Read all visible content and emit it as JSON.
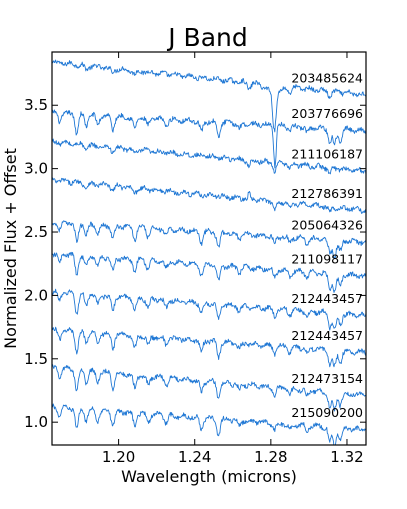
{
  "chart_data": {
    "type": "line",
    "title": "J Band",
    "xlabel": "Wavelength (microns)",
    "ylabel": "Normalized Flux + Offset",
    "xlim": [
      1.165,
      1.33
    ],
    "ylim": [
      0.82,
      3.92
    ],
    "xticks": [
      1.2,
      1.24,
      1.28,
      1.32
    ],
    "xtick_labels": [
      "1.20",
      "1.24",
      "1.28",
      "1.32"
    ],
    "yticks": [
      1.0,
      1.5,
      2.0,
      2.5,
      3.0,
      3.5
    ],
    "ytick_labels": [
      "1.0",
      "1.5",
      "2.0",
      "2.5",
      "3.0",
      "3.5"
    ],
    "grid": false,
    "legend": "labels at right of each spectrum",
    "color": "#1f77d4",
    "series": [
      {
        "name": "203485624",
        "offset_start": 3.84,
        "offset_end": 3.58,
        "kind": "warm"
      },
      {
        "name": "203776696",
        "offset_start": 3.44,
        "offset_end": 3.3,
        "kind": "cool"
      },
      {
        "name": "211106187",
        "offset_start": 3.21,
        "offset_end": 2.98,
        "kind": "warm"
      },
      {
        "name": "212786391",
        "offset_start": 2.91,
        "offset_end": 2.67,
        "kind": "warm"
      },
      {
        "name": "205064326",
        "offset_start": 2.58,
        "offset_end": 2.42,
        "kind": "cool"
      },
      {
        "name": "211098117",
        "offset_start": 2.33,
        "offset_end": 2.15,
        "kind": "cool"
      },
      {
        "name": "212443457",
        "offset_start": 2.03,
        "offset_end": 1.84,
        "kind": "cool"
      },
      {
        "name": "212443457",
        "offset_start": 1.73,
        "offset_end": 1.55,
        "kind": "cool"
      },
      {
        "name": "212473154",
        "offset_start": 1.43,
        "offset_end": 1.21,
        "kind": "cool"
      },
      {
        "name": "215090200",
        "offset_start": 1.12,
        "offset_end": 0.94,
        "kind": "cool"
      }
    ]
  }
}
